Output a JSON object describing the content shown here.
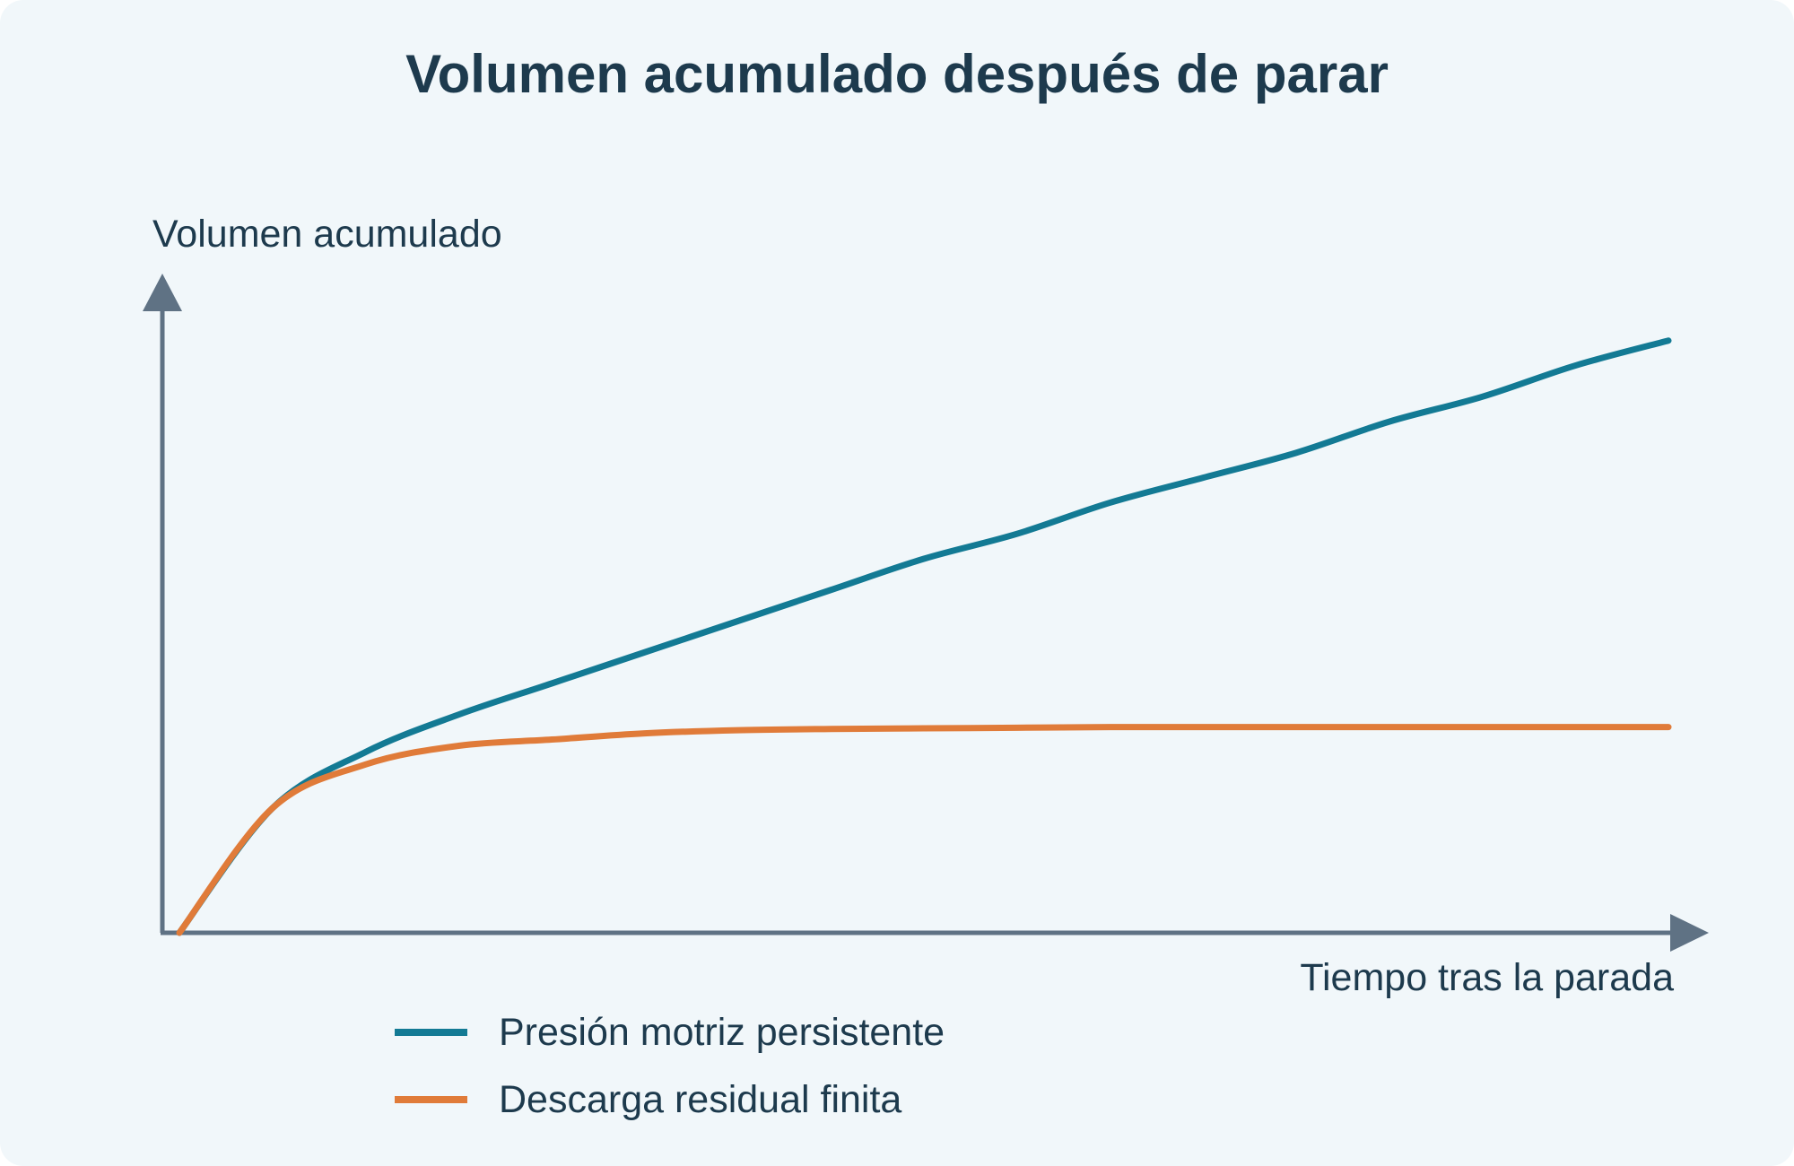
{
  "chart_data": {
    "type": "line",
    "title": "Volumen acumulado después de parar",
    "xlabel": "Tiempo tras la parada",
    "ylabel": "Volumen acumulado",
    "x_ticks": "none",
    "y_ticks": "none",
    "grid": false,
    "legend_position": "bottom-left",
    "xlim": [
      0,
      1
    ],
    "ylim": [
      0,
      1
    ],
    "x": [
      0,
      0.0625,
      0.125,
      0.1875,
      0.25,
      0.3125,
      0.375,
      0.4375,
      0.5,
      0.5625,
      0.625,
      0.6875,
      0.75,
      0.8125,
      0.875,
      0.9375,
      1.0
    ],
    "series": [
      {
        "name": "Presión motriz persistente",
        "color": "#137a94",
        "values": [
          0.0,
          0.2,
          0.29,
          0.35,
          0.4,
          0.45,
          0.5,
          0.55,
          0.6,
          0.64,
          0.69,
          0.73,
          0.77,
          0.82,
          0.86,
          0.91,
          0.95
        ]
      },
      {
        "name": "Descarga residual finita",
        "color": "#e07b39",
        "values": [
          0.0,
          0.2,
          0.27,
          0.3,
          0.31,
          0.32,
          0.325,
          0.327,
          0.328,
          0.329,
          0.33,
          0.33,
          0.33,
          0.33,
          0.33,
          0.33,
          0.33
        ]
      }
    ]
  }
}
